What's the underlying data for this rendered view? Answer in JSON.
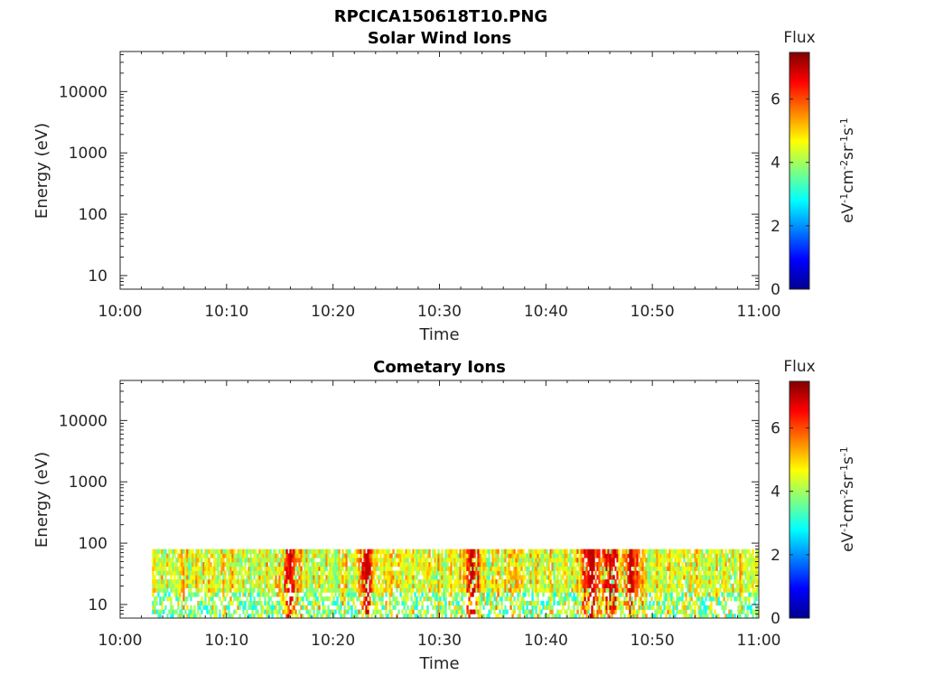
{
  "figure": {
    "title": "RPCICA150618T10.PNG"
  },
  "chart_data": [
    {
      "type": "heatmap",
      "title": "Solar Wind Ions",
      "xlabel": "Time",
      "ylabel": "Energy (eV)",
      "x_tick_labels": [
        "10:00",
        "10:10",
        "10:20",
        "10:30",
        "10:40",
        "10:50",
        "11:00"
      ],
      "y_scale": "log",
      "y_tick_values": [
        10,
        100,
        1000,
        10000
      ],
      "y_tick_labels": [
        "10",
        "100",
        "1000",
        "10000"
      ],
      "ylim": [
        6,
        45000
      ],
      "data": "empty",
      "colorbar": {
        "title": "Flux",
        "label": "eV-1cm-2sr-1s-1",
        "range": [
          0,
          7.5
        ],
        "tick_labels": [
          "0",
          "2",
          "4",
          "6"
        ],
        "colormap": "jet"
      }
    },
    {
      "type": "heatmap",
      "title": "Cometary Ions",
      "xlabel": "Time",
      "ylabel": "Energy (eV)",
      "x_tick_labels": [
        "10:00",
        "10:10",
        "10:20",
        "10:30",
        "10:40",
        "10:50",
        "11:00"
      ],
      "y_scale": "log",
      "y_tick_values": [
        10,
        100,
        1000,
        10000
      ],
      "y_tick_labels": [
        "10",
        "100",
        "1000",
        "10000"
      ],
      "ylim": [
        6,
        45000
      ],
      "data_time_range": [
        "10:03",
        "11:00"
      ],
      "data_energy_range_eV": [
        6,
        80
      ],
      "flux_peak_times": [
        "10:16",
        "10:23",
        "10:33",
        "10:44",
        "10:46",
        "10:48"
      ],
      "flux_typical": 5.5,
      "flux_max": 7.0,
      "colorbar": {
        "title": "Flux",
        "label": "eV-1cm-2sr-1s-1",
        "range": [
          0,
          7.5
        ],
        "tick_labels": [
          "0",
          "2",
          "4",
          "6"
        ],
        "colormap": "jet"
      }
    }
  ]
}
